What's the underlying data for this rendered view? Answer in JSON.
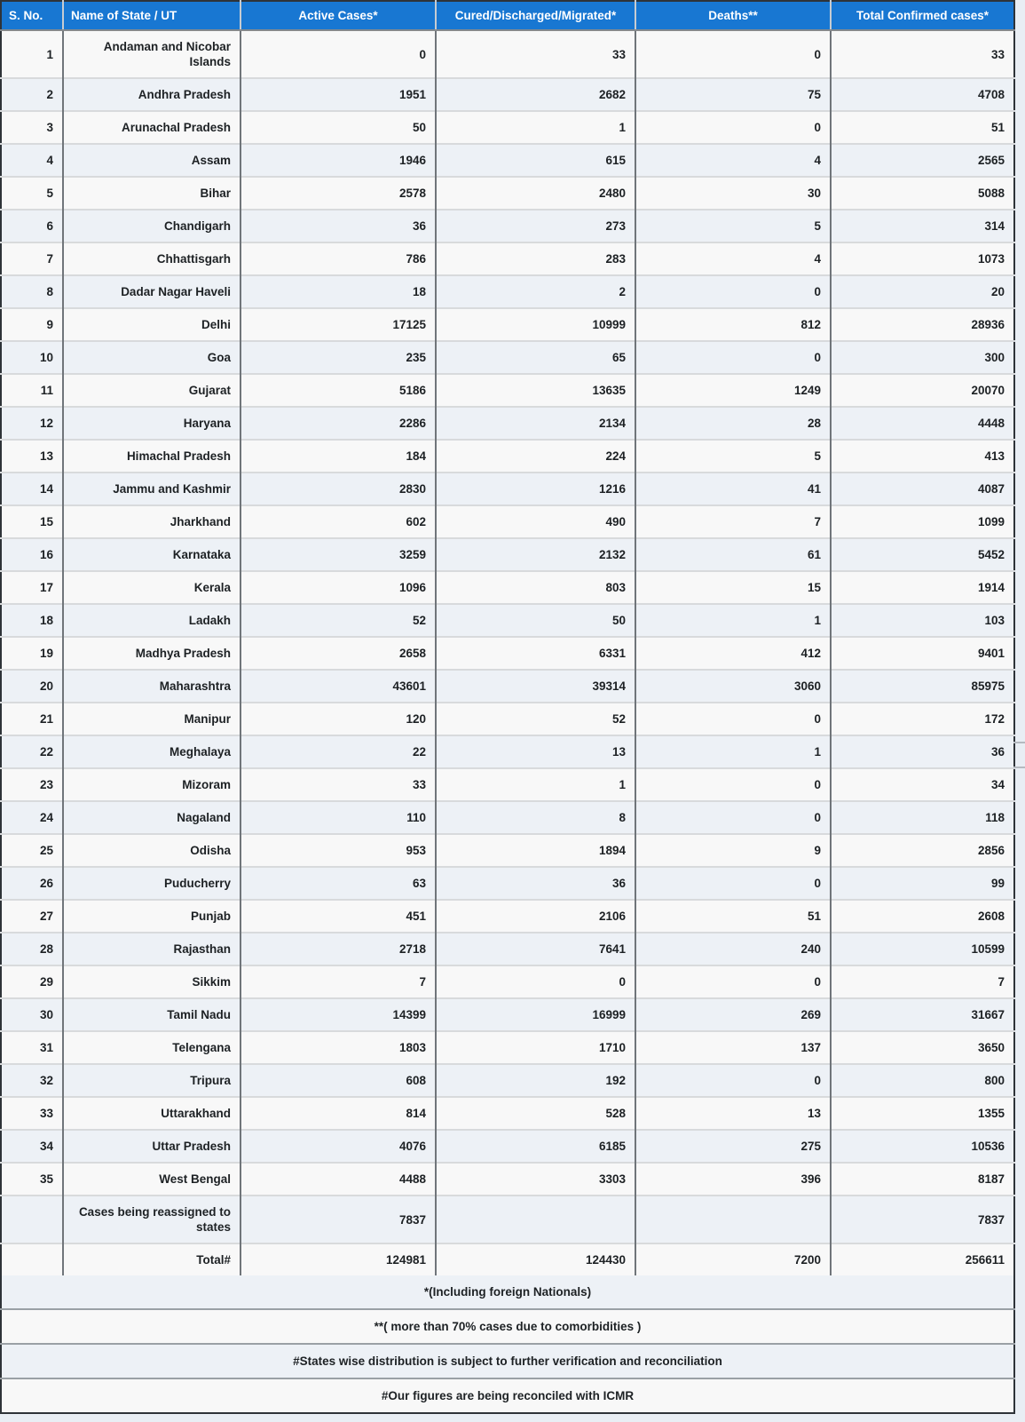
{
  "colors": {
    "header_bg": "#1877d2",
    "header_text": "#ffffff",
    "stripe_row_bg": "#edf1f6",
    "plain_row_bg": "#f8f8f8",
    "page_bg": "#e9eef4",
    "text": "#1d2124"
  },
  "table": {
    "columns": [
      {
        "key": "sno",
        "label": "S. No.",
        "align": "left"
      },
      {
        "key": "state",
        "label": "Name of State / UT",
        "align": "left"
      },
      {
        "key": "active",
        "label": "Active Cases*",
        "align": "center"
      },
      {
        "key": "cured",
        "label": "Cured/Discharged/Migrated*",
        "align": "center"
      },
      {
        "key": "deaths",
        "label": "Deaths**",
        "align": "center"
      },
      {
        "key": "total",
        "label": "Total Confirmed cases*",
        "align": "center"
      }
    ],
    "rows": [
      {
        "sno": "1",
        "state": "Andaman and Nicobar Islands",
        "active": "0",
        "cured": "33",
        "deaths": "0",
        "total": "33"
      },
      {
        "sno": "2",
        "state": "Andhra Pradesh",
        "active": "1951",
        "cured": "2682",
        "deaths": "75",
        "total": "4708"
      },
      {
        "sno": "3",
        "state": "Arunachal Pradesh",
        "active": "50",
        "cured": "1",
        "deaths": "0",
        "total": "51"
      },
      {
        "sno": "4",
        "state": "Assam",
        "active": "1946",
        "cured": "615",
        "deaths": "4",
        "total": "2565"
      },
      {
        "sno": "5",
        "state": "Bihar",
        "active": "2578",
        "cured": "2480",
        "deaths": "30",
        "total": "5088"
      },
      {
        "sno": "6",
        "state": "Chandigarh",
        "active": "36",
        "cured": "273",
        "deaths": "5",
        "total": "314"
      },
      {
        "sno": "7",
        "state": "Chhattisgarh",
        "active": "786",
        "cured": "283",
        "deaths": "4",
        "total": "1073"
      },
      {
        "sno": "8",
        "state": "Dadar Nagar Haveli",
        "active": "18",
        "cured": "2",
        "deaths": "0",
        "total": "20"
      },
      {
        "sno": "9",
        "state": "Delhi",
        "active": "17125",
        "cured": "10999",
        "deaths": "812",
        "total": "28936"
      },
      {
        "sno": "10",
        "state": "Goa",
        "active": "235",
        "cured": "65",
        "deaths": "0",
        "total": "300"
      },
      {
        "sno": "11",
        "state": "Gujarat",
        "active": "5186",
        "cured": "13635",
        "deaths": "1249",
        "total": "20070"
      },
      {
        "sno": "12",
        "state": "Haryana",
        "active": "2286",
        "cured": "2134",
        "deaths": "28",
        "total": "4448"
      },
      {
        "sno": "13",
        "state": "Himachal Pradesh",
        "active": "184",
        "cured": "224",
        "deaths": "5",
        "total": "413"
      },
      {
        "sno": "14",
        "state": "Jammu and Kashmir",
        "active": "2830",
        "cured": "1216",
        "deaths": "41",
        "total": "4087"
      },
      {
        "sno": "15",
        "state": "Jharkhand",
        "active": "602",
        "cured": "490",
        "deaths": "7",
        "total": "1099"
      },
      {
        "sno": "16",
        "state": "Karnataka",
        "active": "3259",
        "cured": "2132",
        "deaths": "61",
        "total": "5452"
      },
      {
        "sno": "17",
        "state": "Kerala",
        "active": "1096",
        "cured": "803",
        "deaths": "15",
        "total": "1914"
      },
      {
        "sno": "18",
        "state": "Ladakh",
        "active": "52",
        "cured": "50",
        "deaths": "1",
        "total": "103"
      },
      {
        "sno": "19",
        "state": "Madhya Pradesh",
        "active": "2658",
        "cured": "6331",
        "deaths": "412",
        "total": "9401"
      },
      {
        "sno": "20",
        "state": "Maharashtra",
        "active": "43601",
        "cured": "39314",
        "deaths": "3060",
        "total": "85975"
      },
      {
        "sno": "21",
        "state": "Manipur",
        "active": "120",
        "cured": "52",
        "deaths": "0",
        "total": "172"
      },
      {
        "sno": "22",
        "state": "Meghalaya",
        "active": "22",
        "cured": "13",
        "deaths": "1",
        "total": "36"
      },
      {
        "sno": "23",
        "state": "Mizoram",
        "active": "33",
        "cured": "1",
        "deaths": "0",
        "total": "34"
      },
      {
        "sno": "24",
        "state": "Nagaland",
        "active": "110",
        "cured": "8",
        "deaths": "0",
        "total": "118"
      },
      {
        "sno": "25",
        "state": "Odisha",
        "active": "953",
        "cured": "1894",
        "deaths": "9",
        "total": "2856"
      },
      {
        "sno": "26",
        "state": "Puducherry",
        "active": "63",
        "cured": "36",
        "deaths": "0",
        "total": "99"
      },
      {
        "sno": "27",
        "state": "Punjab",
        "active": "451",
        "cured": "2106",
        "deaths": "51",
        "total": "2608"
      },
      {
        "sno": "28",
        "state": "Rajasthan",
        "active": "2718",
        "cured": "7641",
        "deaths": "240",
        "total": "10599"
      },
      {
        "sno": "29",
        "state": "Sikkim",
        "active": "7",
        "cured": "0",
        "deaths": "0",
        "total": "7"
      },
      {
        "sno": "30",
        "state": "Tamil Nadu",
        "active": "14399",
        "cured": "16999",
        "deaths": "269",
        "total": "31667"
      },
      {
        "sno": "31",
        "state": "Telengana",
        "active": "1803",
        "cured": "1710",
        "deaths": "137",
        "total": "3650"
      },
      {
        "sno": "32",
        "state": "Tripura",
        "active": "608",
        "cured": "192",
        "deaths": "0",
        "total": "800"
      },
      {
        "sno": "33",
        "state": "Uttarakhand",
        "active": "814",
        "cured": "528",
        "deaths": "13",
        "total": "1355"
      },
      {
        "sno": "34",
        "state": "Uttar Pradesh",
        "active": "4076",
        "cured": "6185",
        "deaths": "275",
        "total": "10536"
      },
      {
        "sno": "35",
        "state": "West Bengal",
        "active": "4488",
        "cured": "3303",
        "deaths": "396",
        "total": "8187"
      },
      {
        "sno": "",
        "state": "Cases being reassigned to states",
        "active": "7837",
        "cured": "",
        "deaths": "",
        "total": "7837"
      },
      {
        "sno": "",
        "state": "Total#",
        "active": "124981",
        "cured": "124430",
        "deaths": "7200",
        "total": "256611"
      }
    ],
    "notes": [
      "*(Including foreign Nationals)",
      "**( more than 70% cases due to comorbidities )",
      "#States wise distribution is subject to further verification and reconciliation",
      "#Our figures are being reconciled with ICMR"
    ]
  }
}
